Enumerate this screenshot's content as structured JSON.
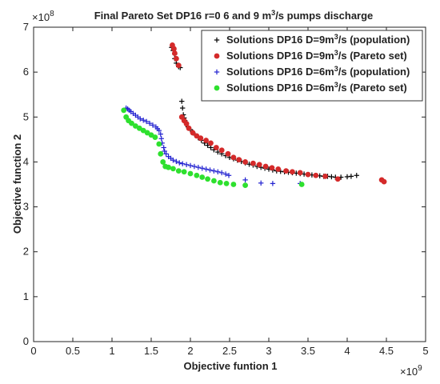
{
  "chart_data": {
    "type": "scatter",
    "title": "Final Pareto Set DP16 r=0 6 and 9 m",
    "title_sup": "3",
    "title_end": "/s pumps discharge",
    "xlabel": "Objective funtion 1",
    "ylabel": "Objective function 2",
    "x_exponent_base": "×10",
    "x_exponent_power": "9",
    "y_exponent_base": "×10",
    "y_exponent_power": "8",
    "xlim": [
      0,
      5
    ],
    "ylim": [
      0,
      7
    ],
    "x_ticks": [
      "0",
      "0.5",
      "1",
      "1.5",
      "2",
      "2.5",
      "3",
      "3.5",
      "4",
      "4.5",
      "5"
    ],
    "y_ticks": [
      "0",
      "1",
      "2",
      "3",
      "4",
      "5",
      "6",
      "7"
    ],
    "grid": false,
    "legend_position": "top-right",
    "series": [
      {
        "name_pre": "Solutions DP16  D=9m",
        "name_sup": "3",
        "name_post": "/s  (population)",
        "marker": "plus",
        "color": "#000000",
        "points": [
          [
            1.76,
            6.55
          ],
          [
            1.78,
            6.48
          ],
          [
            1.8,
            6.4
          ],
          [
            1.8,
            6.3
          ],
          [
            1.82,
            6.2
          ],
          [
            1.85,
            6.12
          ],
          [
            1.87,
            6.1
          ],
          [
            1.89,
            5.35
          ],
          [
            1.9,
            5.2
          ],
          [
            1.91,
            5.05
          ],
          [
            1.92,
            4.98
          ],
          [
            1.93,
            4.92
          ],
          [
            1.95,
            4.85
          ],
          [
            1.97,
            4.78
          ],
          [
            2.0,
            4.72
          ],
          [
            2.03,
            4.66
          ],
          [
            2.06,
            4.6
          ],
          [
            2.1,
            4.54
          ],
          [
            2.14,
            4.48
          ],
          [
            2.18,
            4.42
          ],
          [
            2.22,
            4.37
          ],
          [
            2.26,
            4.32
          ],
          [
            2.3,
            4.27
          ],
          [
            2.35,
            4.22
          ],
          [
            2.4,
            4.18
          ],
          [
            2.45,
            4.14
          ],
          [
            2.5,
            4.1
          ],
          [
            2.55,
            4.07
          ],
          [
            2.6,
            4.04
          ],
          [
            2.65,
            4.01
          ],
          [
            2.7,
            3.98
          ],
          [
            2.75,
            3.95
          ],
          [
            2.8,
            3.93
          ],
          [
            2.85,
            3.9
          ],
          [
            2.9,
            3.88
          ],
          [
            2.95,
            3.86
          ],
          [
            3.0,
            3.84
          ],
          [
            3.05,
            3.82
          ],
          [
            3.1,
            3.8
          ],
          [
            3.15,
            3.79
          ],
          [
            3.2,
            3.78
          ],
          [
            3.25,
            3.77
          ],
          [
            3.3,
            3.76
          ],
          [
            3.35,
            3.75
          ],
          [
            3.4,
            3.74
          ],
          [
            3.45,
            3.73
          ],
          [
            3.5,
            3.72
          ],
          [
            3.55,
            3.71
          ],
          [
            3.6,
            3.7
          ],
          [
            3.65,
            3.69
          ],
          [
            3.7,
            3.68
          ],
          [
            3.75,
            3.68
          ],
          [
            3.8,
            3.67
          ],
          [
            3.85,
            3.66
          ],
          [
            3.92,
            3.66
          ],
          [
            4.0,
            3.67
          ],
          [
            4.05,
            3.68
          ],
          [
            4.12,
            3.7
          ]
        ]
      },
      {
        "name_pre": "Solutions DP16  D=9m",
        "name_sup": "3",
        "name_post": "/s  (Pareto set)",
        "marker": "circle",
        "color": "#d42a2a",
        "points": [
          [
            1.77,
            6.6
          ],
          [
            1.79,
            6.52
          ],
          [
            1.8,
            6.42
          ],
          [
            1.82,
            6.3
          ],
          [
            1.85,
            6.15
          ],
          [
            1.89,
            5.0
          ],
          [
            1.92,
            4.92
          ],
          [
            1.95,
            4.85
          ],
          [
            1.98,
            4.75
          ],
          [
            2.03,
            4.65
          ],
          [
            2.08,
            4.58
          ],
          [
            2.13,
            4.53
          ],
          [
            2.2,
            4.48
          ],
          [
            2.26,
            4.42
          ],
          [
            2.33,
            4.32
          ],
          [
            2.4,
            4.26
          ],
          [
            2.48,
            4.18
          ],
          [
            2.55,
            4.1
          ],
          [
            2.62,
            4.05
          ],
          [
            2.7,
            4.0
          ],
          [
            2.8,
            3.97
          ],
          [
            2.88,
            3.94
          ],
          [
            2.96,
            3.9
          ],
          [
            3.04,
            3.87
          ],
          [
            3.12,
            3.84
          ],
          [
            3.22,
            3.8
          ],
          [
            3.3,
            3.78
          ],
          [
            3.4,
            3.76
          ],
          [
            3.5,
            3.72
          ],
          [
            3.6,
            3.7
          ],
          [
            3.72,
            3.68
          ],
          [
            3.88,
            3.62
          ],
          [
            4.44,
            3.6
          ],
          [
            4.47,
            3.56
          ]
        ]
      },
      {
        "name_pre": "Solutions DP16  D=6m",
        "name_sup": "3",
        "name_post": "/s  (population)",
        "marker": "plus",
        "color": "#2020d0",
        "points": [
          [
            1.18,
            5.2
          ],
          [
            1.2,
            5.18
          ],
          [
            1.22,
            5.15
          ],
          [
            1.24,
            5.12
          ],
          [
            1.27,
            5.08
          ],
          [
            1.3,
            5.04
          ],
          [
            1.33,
            5.0
          ],
          [
            1.36,
            4.96
          ],
          [
            1.4,
            4.93
          ],
          [
            1.44,
            4.9
          ],
          [
            1.48,
            4.86
          ],
          [
            1.52,
            4.82
          ],
          [
            1.56,
            4.78
          ],
          [
            1.58,
            4.74
          ],
          [
            1.6,
            4.7
          ],
          [
            1.62,
            4.62
          ],
          [
            1.63,
            4.52
          ],
          [
            1.64,
            4.42
          ],
          [
            1.66,
            4.32
          ],
          [
            1.67,
            4.24
          ],
          [
            1.69,
            4.18
          ],
          [
            1.72,
            4.12
          ],
          [
            1.75,
            4.08
          ],
          [
            1.78,
            4.04
          ],
          [
            1.82,
            4.01
          ],
          [
            1.86,
            3.98
          ],
          [
            1.9,
            3.96
          ],
          [
            1.95,
            3.94
          ],
          [
            2.0,
            3.92
          ],
          [
            2.05,
            3.9
          ],
          [
            2.1,
            3.88
          ],
          [
            2.15,
            3.86
          ],
          [
            2.2,
            3.84
          ],
          [
            2.25,
            3.82
          ],
          [
            2.3,
            3.8
          ],
          [
            2.35,
            3.78
          ],
          [
            2.4,
            3.76
          ],
          [
            2.45,
            3.73
          ],
          [
            2.49,
            3.7
          ],
          [
            2.7,
            3.6
          ],
          [
            2.9,
            3.53
          ],
          [
            3.05,
            3.52
          ],
          [
            3.4,
            3.52
          ]
        ]
      },
      {
        "name_pre": "Solutions DP16  D=6m",
        "name_sup": "3",
        "name_post": "/s  (Pareto set)",
        "marker": "circle",
        "color": "#2ee02e",
        "points": [
          [
            1.15,
            5.15
          ],
          [
            1.18,
            5.0
          ],
          [
            1.21,
            4.92
          ],
          [
            1.25,
            4.86
          ],
          [
            1.3,
            4.8
          ],
          [
            1.35,
            4.75
          ],
          [
            1.4,
            4.7
          ],
          [
            1.45,
            4.65
          ],
          [
            1.5,
            4.6
          ],
          [
            1.55,
            4.55
          ],
          [
            1.6,
            4.4
          ],
          [
            1.62,
            4.18
          ],
          [
            1.65,
            4.0
          ],
          [
            1.68,
            3.9
          ],
          [
            1.72,
            3.88
          ],
          [
            1.78,
            3.85
          ],
          [
            1.85,
            3.8
          ],
          [
            1.92,
            3.78
          ],
          [
            2.0,
            3.74
          ],
          [
            2.08,
            3.7
          ],
          [
            2.15,
            3.66
          ],
          [
            2.22,
            3.62
          ],
          [
            2.3,
            3.58
          ],
          [
            2.38,
            3.54
          ],
          [
            2.46,
            3.52
          ],
          [
            2.55,
            3.5
          ],
          [
            2.7,
            3.48
          ],
          [
            3.42,
            3.5
          ]
        ]
      }
    ]
  }
}
